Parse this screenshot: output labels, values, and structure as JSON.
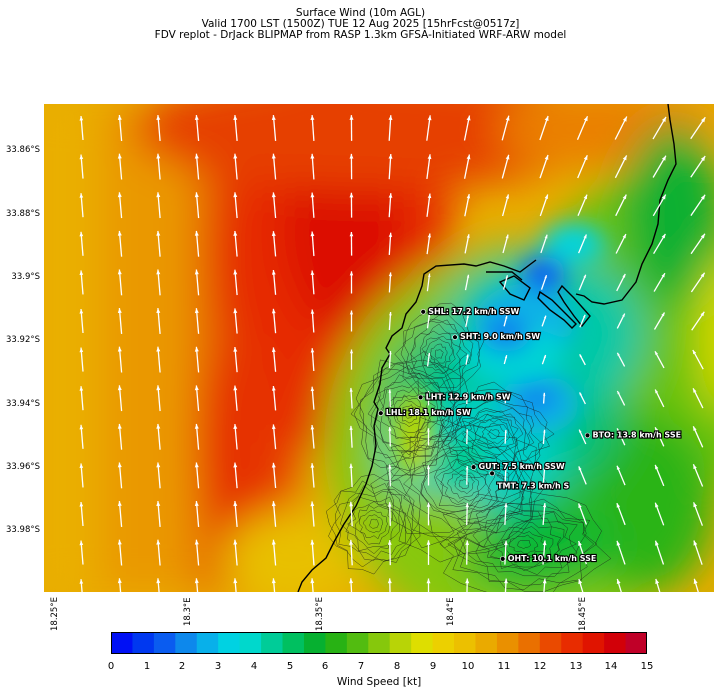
{
  "header": {
    "line1": "Surface Wind (10m AGL)",
    "line2": "Valid 1700 LST (1500Z) TUE 12 Aug 2025 [15hrFcst@0517z]",
    "line3": "FDV replot - DrJack BLIPMAP from RASP 1.3km GFSA-Initiated WRF-ARW model"
  },
  "map": {
    "lat_labels": [
      "33.86°S",
      "33.88°S",
      "33.9°S",
      "33.92°S",
      "33.94°S",
      "33.96°S",
      "33.98°S"
    ],
    "lon_labels": [
      "18.25°E",
      "18.3°E",
      "18.35°E",
      "18.4°E",
      "18.45°E"
    ],
    "stations": [
      {
        "code": "SHL",
        "text": "SHL: 17.2 km/h SSW",
        "lat": -33.908,
        "lon": 18.3883,
        "labelSide": "right"
      },
      {
        "code": "SHT",
        "text": "SHT: 9.0 km/h SW",
        "lat": -33.916,
        "lon": 18.4003,
        "labelSide": "right"
      },
      {
        "code": "LHT",
        "text": "LHT: 12.9 km/h SW",
        "lat": -33.935,
        "lon": 18.3873,
        "labelSide": "right"
      },
      {
        "code": "LHL",
        "text": "LHL: 18.1 km/h SW",
        "lat": -33.94,
        "lon": 18.3723,
        "labelSide": "right"
      },
      {
        "code": "BTO",
        "text": "BTO: 13.8 km/h SSE",
        "lat": -33.947,
        "lon": 18.4503,
        "labelSide": "right"
      },
      {
        "code": "GUT",
        "text": "GUT: 7.5 km/h SSW",
        "lat": -33.957,
        "lon": 18.4073,
        "labelSide": "right"
      },
      {
        "code": "TMT",
        "text": "TMT: 7.3 km/h S",
        "lat": -33.959,
        "lon": 18.4143,
        "labelSide": "below"
      },
      {
        "code": "OHT",
        "text": "OHT: 10.1 km/h SSE",
        "lat": -33.986,
        "lon": 18.4183,
        "labelSide": "right"
      }
    ]
  },
  "colorbar": {
    "ticks": [
      "0",
      "1",
      "2",
      "3",
      "4",
      "5",
      "6",
      "7",
      "8",
      "9",
      "10",
      "11",
      "12",
      "13",
      "14",
      "15"
    ],
    "label": "Wind Speed [kt]",
    "colors": [
      "#0010f5",
      "#0038f0",
      "#0a5cf0",
      "#0d88ec",
      "#08b0ea",
      "#00d2e2",
      "#00d8cc",
      "#00cc98",
      "#00c060",
      "#06b030",
      "#28b214",
      "#52bc10",
      "#86c80c",
      "#b8d406",
      "#dede00",
      "#ecd000",
      "#ecc000",
      "#eaaa00",
      "#ea9000",
      "#ea7000",
      "#ea4a00",
      "#e82c00",
      "#e01400",
      "#d20008",
      "#c00028"
    ]
  }
}
